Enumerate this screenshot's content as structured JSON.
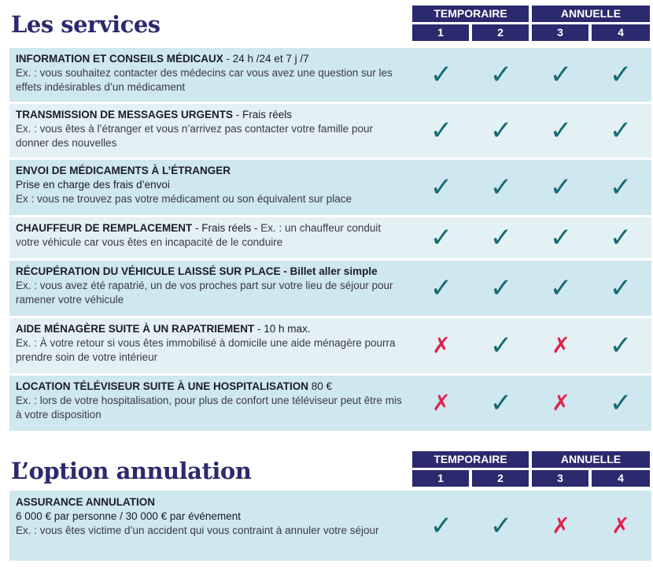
{
  "services": {
    "title": "Les services",
    "header": {
      "groups": [
        "TEMPORAIRE",
        "ANNUELLE"
      ],
      "columns": [
        "1",
        "2",
        "3",
        "4"
      ]
    },
    "rows": [
      {
        "title": "INFORMATION ET CONSEILS MÉDICAUX",
        "suffix": " - 24 h /24 et 7 j /7",
        "subtitle": "",
        "example": "Ex. : vous souhaitez contacter des médecins car vous avez une question sur les effets indésirables d’un médicament",
        "values": [
          "check",
          "check",
          "check",
          "check"
        ]
      },
      {
        "title": "TRANSMISSION DE MESSAGES URGENTS",
        "suffix": " - Frais réels",
        "subtitle": "",
        "example": "Ex. : vous êtes à l’étranger et vous n’arrivez pas contacter votre famille pour donner des nouvelles",
        "values": [
          "check",
          "check",
          "check",
          "check"
        ]
      },
      {
        "title": "ENVOI DE MÉDICAMENTS À L’ÉTRANGER",
        "suffix": "",
        "subtitle": "Prise en charge des frais d’envoi",
        "example": "Ex : vous ne trouvez pas votre médicament ou son équivalent sur place",
        "values": [
          "check",
          "check",
          "check",
          "check"
        ]
      },
      {
        "title": "CHAUFFEUR DE REMPLACEMENT",
        "suffix": " - Frais réels - ",
        "subtitle": "",
        "example": "Ex. : un chauffeur conduit votre véhicule car vous êtes en incapacité de le conduire",
        "values": [
          "check",
          "check",
          "check",
          "check"
        ]
      },
      {
        "title": "RÉCUPÉRATION DU VÉHICULE LAISSÉ SUR PLACE",
        "suffix": " - Billet aller simple",
        "subtitle": "",
        "example": "Ex. : vous avez été rapatrié, un de vos proches part sur votre lieu de séjour pour ramener votre véhicule",
        "values": [
          "check",
          "check",
          "check",
          "check"
        ]
      },
      {
        "title": "AIDE MÉNAGÈRE SUITE À UN RAPATRIEMENT",
        "suffix": " - 10 h max.",
        "subtitle": "",
        "example": "Ex. : À votre retour si vous êtes immobilisé à domicile une aide ménagère pourra prendre soin de votre intérieur",
        "values": [
          "cross",
          "check",
          "cross",
          "check"
        ]
      },
      {
        "title": "LOCATION TÉLÉVISEUR SUITE À UNE HOSPITALISATION",
        "suffix": " 80 €",
        "subtitle": "",
        "example": "Ex. : lors de votre hospitalisation, pour plus de confort une téléviseur peut être mis à votre disposition",
        "values": [
          "cross",
          "check",
          "cross",
          "check"
        ]
      }
    ]
  },
  "annulation": {
    "title": "L’option annulation",
    "header": {
      "groups": [
        "TEMPORAIRE",
        "ANNUELLE"
      ],
      "columns": [
        "1",
        "2",
        "3",
        "4"
      ]
    },
    "rows": [
      {
        "title": "ASSURANCE ANNULATION",
        "suffix": "",
        "subtitle": "6 000 € par personne / 30 000 € par événement",
        "example": "Ex. : vous êtes victime d’un accident qui vous contraint à annuler votre séjour",
        "values": [
          "check",
          "check",
          "cross",
          "cross"
        ]
      }
    ]
  },
  "symbols": {
    "check": "✓",
    "cross": "✗"
  },
  "colors": {
    "brand": "#2b2a6e",
    "check": "#176b73",
    "cross": "#e0234d",
    "row": "#cfe7ef",
    "row_alt": "#e3f1f5"
  }
}
